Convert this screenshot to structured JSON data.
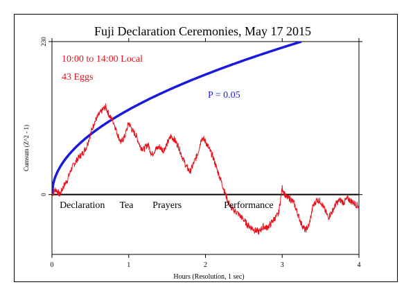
{
  "chart_data": {
    "type": "line",
    "title": "Fuji Declaration Ceremonies, May 17 2015",
    "xlabel": "Hours (Resolution, 1 sec)",
    "ylabel": "Cumsum (Z^2 - 1)",
    "xlim": [
      0,
      4
    ],
    "ylim": [
      -90,
      230
    ],
    "x_ticks": [
      0,
      1,
      2,
      3,
      4
    ],
    "x_tick_labels": [
      "0",
      "1",
      "2",
      "3",
      "4"
    ],
    "y_tick_labels_shown": [
      {
        "value": 0,
        "label": "0"
      },
      {
        "value": 230,
        "label": "230"
      }
    ],
    "annotations": {
      "time_range": "10:00 to 14:00 Local",
      "eggs": "43 Eggs",
      "p_label": "P = 0.05"
    },
    "segment_labels": [
      {
        "label": "Declaration",
        "x": 0.1
      },
      {
        "label": "Tea",
        "x": 0.88
      },
      {
        "label": "Prayers",
        "x": 1.31
      },
      {
        "label": "Performance",
        "x": 2.24
      }
    ],
    "series": [
      {
        "name": "",
        "kind": "p05-envelope",
        "color": "#1a1adf",
        "formula_note": "sqrt",
        "x": [
          0,
          0.1,
          0.25,
          0.5,
          0.75,
          1.0,
          1.5,
          2.0,
          2.5,
          3.0,
          3.25
        ],
        "values": [
          0,
          40,
          64,
          90,
          110,
          127,
          156,
          180,
          201,
          220,
          230
        ]
      },
      {
        "name": "",
        "kind": "cumsum",
        "color": "#e8101a",
        "x": [
          0,
          0.05,
          0.1,
          0.15,
          0.2,
          0.25,
          0.3,
          0.35,
          0.4,
          0.45,
          0.5,
          0.55,
          0.6,
          0.65,
          0.7,
          0.75,
          0.8,
          0.85,
          0.9,
          0.95,
          1.0,
          1.05,
          1.1,
          1.15,
          1.2,
          1.25,
          1.3,
          1.35,
          1.4,
          1.45,
          1.5,
          1.55,
          1.6,
          1.65,
          1.7,
          1.75,
          1.8,
          1.85,
          1.9,
          1.95,
          2.0,
          2.05,
          2.1,
          2.15,
          2.2,
          2.25,
          2.3,
          2.35,
          2.4,
          2.45,
          2.5,
          2.55,
          2.6,
          2.65,
          2.7,
          2.75,
          2.8,
          2.85,
          2.9,
          2.95,
          3.0,
          3.05,
          3.1,
          3.15,
          3.2,
          3.25,
          3.3,
          3.35,
          3.4,
          3.45,
          3.5,
          3.55,
          3.6,
          3.65,
          3.7,
          3.75,
          3.8,
          3.85,
          3.9,
          3.95,
          4.0
        ],
        "values": [
          0,
          8,
          0,
          12,
          22,
          38,
          48,
          56,
          62,
          72,
          90,
          108,
          118,
          126,
          132,
          118,
          110,
          92,
          78,
          88,
          108,
          96,
          88,
          72,
          68,
          76,
          60,
          68,
          72,
          66,
          76,
          88,
          82,
          72,
          56,
          42,
          34,
          48,
          62,
          86,
          80,
          68,
          56,
          38,
          22,
          4,
          -12,
          -22,
          -26,
          -32,
          -38,
          -46,
          -50,
          -54,
          -56,
          -48,
          -50,
          -44,
          -36,
          -30,
          10,
          -4,
          -6,
          -12,
          -28,
          -44,
          -54,
          -46,
          -18,
          -8,
          -10,
          -22,
          -34,
          -26,
          -14,
          -8,
          -12,
          -6,
          -10,
          -14,
          -18
        ]
      }
    ],
    "grid": false,
    "legend": "none"
  }
}
